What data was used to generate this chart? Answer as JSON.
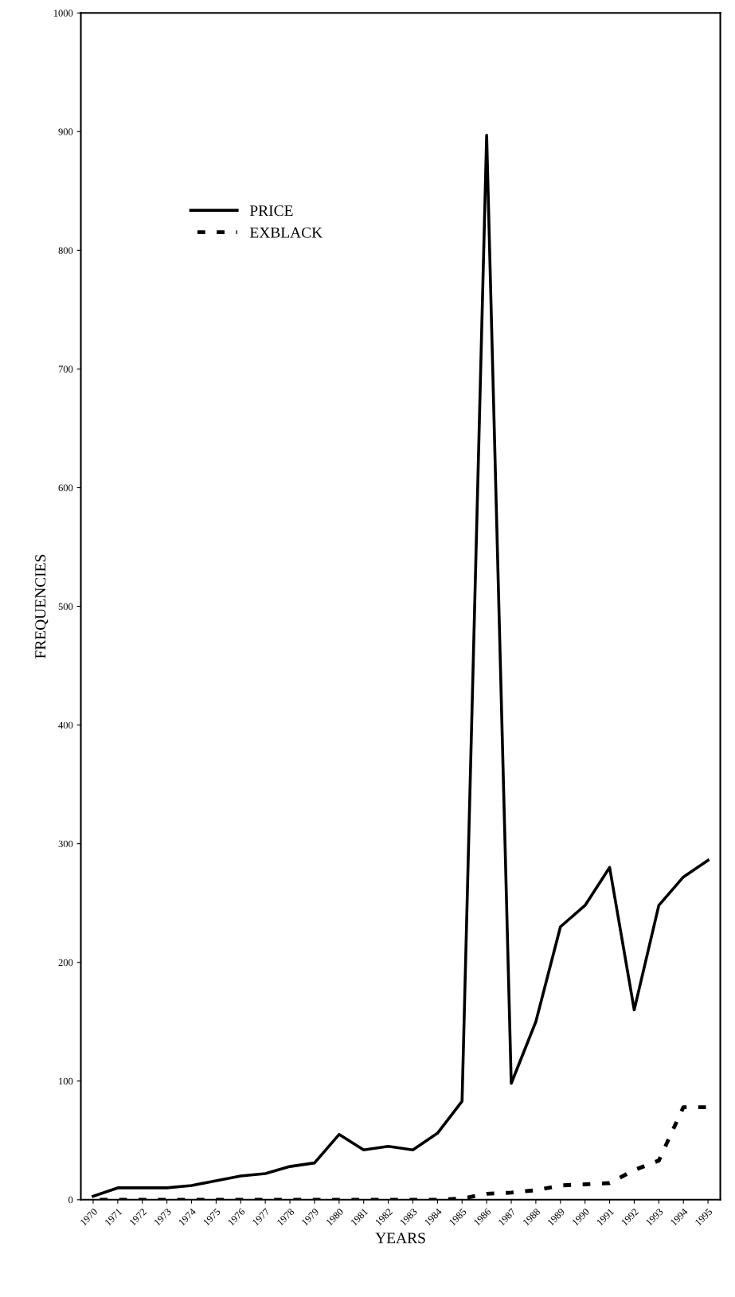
{
  "chart_data": {
    "type": "line",
    "xlabel": "YEARS",
    "ylabel": "FREQUENCIES",
    "categories": [
      "1970",
      "1971",
      "1972",
      "1973",
      "1974",
      "1975",
      "1976",
      "1977",
      "1978",
      "1979",
      "1980",
      "1981",
      "1982",
      "1983",
      "1984",
      "1985",
      "1986",
      "1987",
      "1988",
      "1989",
      "1990",
      "1991",
      "1992",
      "1993",
      "1994",
      "1995"
    ],
    "series": [
      {
        "name": "PRICE",
        "color": "#000000",
        "line_style": "solid",
        "values": [
          3,
          10,
          10,
          10,
          12,
          16,
          20,
          22,
          28,
          31,
          55,
          42,
          45,
          42,
          56,
          83,
          897,
          98,
          150,
          230,
          248,
          280,
          160,
          248,
          272,
          286
        ]
      },
      {
        "name": "EXBLACK",
        "color": "#000000",
        "line_style": "dashed",
        "values": [
          0,
          0,
          0,
          0,
          0,
          0,
          0,
          0,
          0,
          0,
          0,
          0,
          0,
          0,
          0,
          1,
          5,
          6,
          8,
          12,
          13,
          14,
          25,
          33,
          78,
          78
        ]
      }
    ],
    "ylim": [
      0,
      1000
    ],
    "yticks": [
      0,
      100,
      200,
      300,
      400,
      500,
      600,
      700,
      800,
      900,
      1000
    ],
    "grid": false,
    "legend": "top left",
    "marker": "none"
  }
}
